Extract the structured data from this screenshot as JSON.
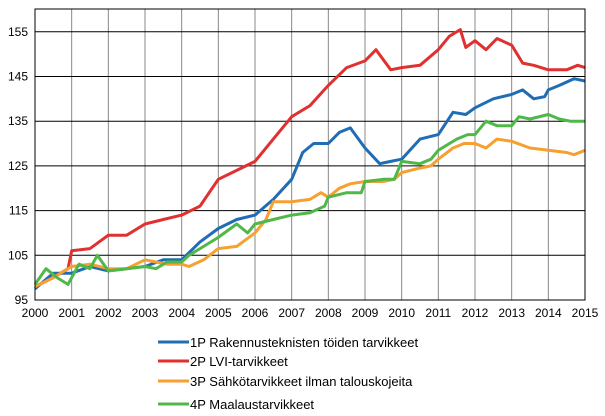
{
  "chart_data": {
    "type": "line",
    "title": "",
    "xlabel": "",
    "ylabel": "",
    "xlim": [
      2000,
      2015
    ],
    "ylim": [
      95,
      160
    ],
    "x_ticks": [
      "2000",
      "2001",
      "2002",
      "2003",
      "2004",
      "2005",
      "2006",
      "2007",
      "2008",
      "2009",
      "2010",
      "2011",
      "2012",
      "2013",
      "2014",
      "2015"
    ],
    "y_ticks": [
      "95",
      "105",
      "115",
      "125",
      "135",
      "145",
      "155"
    ],
    "grid": "both",
    "legend_placement": "bottom",
    "series": [
      {
        "name": "1P Rakennusteknisten töiden tarvikkeet",
        "color": "#1f6db5",
        "points": [
          [
            2000,
            97.5
          ],
          [
            2000.5,
            101
          ],
          [
            2001,
            101
          ],
          [
            2001.5,
            102.5
          ],
          [
            2002,
            101.5
          ],
          [
            2002.5,
            102
          ],
          [
            2003,
            102.5
          ],
          [
            2003.5,
            104
          ],
          [
            2004,
            104
          ],
          [
            2004.5,
            108
          ],
          [
            2005,
            111
          ],
          [
            2005.5,
            113
          ],
          [
            2006,
            114
          ],
          [
            2006.5,
            117.5
          ],
          [
            2007,
            122
          ],
          [
            2007.3,
            128
          ],
          [
            2007.6,
            130
          ],
          [
            2008,
            130
          ],
          [
            2008.3,
            132.5
          ],
          [
            2008.6,
            133.5
          ],
          [
            2009,
            129
          ],
          [
            2009.4,
            125.5
          ],
          [
            2009.7,
            126
          ],
          [
            2010,
            126.5
          ],
          [
            2010.5,
            131
          ],
          [
            2011,
            132
          ],
          [
            2011.4,
            137
          ],
          [
            2011.75,
            136.5
          ],
          [
            2012,
            138
          ],
          [
            2012.5,
            140
          ],
          [
            2013,
            141
          ],
          [
            2013.3,
            142
          ],
          [
            2013.6,
            140
          ],
          [
            2013.9,
            140.5
          ],
          [
            2014,
            142
          ],
          [
            2014.3,
            143
          ],
          [
            2014.7,
            144.5
          ],
          [
            2015,
            144
          ]
        ]
      },
      {
        "name": "2P LVI-tarvikkeet",
        "color": "#e03030",
        "points": [
          [
            2000,
            98
          ],
          [
            2000.5,
            100
          ],
          [
            2000.9,
            102
          ],
          [
            2001,
            106
          ],
          [
            2001.5,
            106.5
          ],
          [
            2002,
            109.5
          ],
          [
            2002.5,
            109.5
          ],
          [
            2003,
            112
          ],
          [
            2003.5,
            113
          ],
          [
            2004,
            114
          ],
          [
            2004.5,
            116
          ],
          [
            2005,
            122
          ],
          [
            2005.5,
            124
          ],
          [
            2006,
            126
          ],
          [
            2006.5,
            131
          ],
          [
            2007,
            136
          ],
          [
            2007.5,
            138.5
          ],
          [
            2008,
            143
          ],
          [
            2008.5,
            147
          ],
          [
            2009,
            148.5
          ],
          [
            2009.3,
            151
          ],
          [
            2009.7,
            146.5
          ],
          [
            2010,
            147
          ],
          [
            2010.5,
            147.5
          ],
          [
            2011,
            151
          ],
          [
            2011.3,
            154
          ],
          [
            2011.6,
            155.5
          ],
          [
            2011.75,
            151.5
          ],
          [
            2012,
            153
          ],
          [
            2012.3,
            151
          ],
          [
            2012.6,
            153.5
          ],
          [
            2013,
            152
          ],
          [
            2013.3,
            148
          ],
          [
            2013.6,
            147.5
          ],
          [
            2014,
            146.5
          ],
          [
            2014.5,
            146.5
          ],
          [
            2014.8,
            147.5
          ],
          [
            2015,
            147
          ]
        ]
      },
      {
        "name": "3P Sähkötarvikkeet ilman talouskojeita",
        "color": "#f5a030",
        "points": [
          [
            2000,
            98
          ],
          [
            2000.5,
            100
          ],
          [
            2001,
            102.5
          ],
          [
            2001.5,
            103
          ],
          [
            2002,
            102
          ],
          [
            2002.5,
            102
          ],
          [
            2003,
            104
          ],
          [
            2003.3,
            103.5
          ],
          [
            2003.6,
            103
          ],
          [
            2004,
            103
          ],
          [
            2004.2,
            102.5
          ],
          [
            2004.6,
            104
          ],
          [
            2005,
            106.5
          ],
          [
            2005.5,
            107
          ],
          [
            2006,
            110
          ],
          [
            2006.3,
            113
          ],
          [
            2006.5,
            117
          ],
          [
            2007,
            117
          ],
          [
            2007.5,
            117.5
          ],
          [
            2007.8,
            119
          ],
          [
            2008,
            118
          ],
          [
            2008.3,
            120
          ],
          [
            2008.6,
            121
          ],
          [
            2009,
            121.5
          ],
          [
            2009.5,
            121.5
          ],
          [
            2009.8,
            122
          ],
          [
            2010,
            123.5
          ],
          [
            2010.5,
            124.5
          ],
          [
            2010.8,
            125
          ],
          [
            2011,
            126.5
          ],
          [
            2011.4,
            129
          ],
          [
            2011.7,
            130
          ],
          [
            2012,
            130
          ],
          [
            2012.3,
            129
          ],
          [
            2012.6,
            131
          ],
          [
            2013,
            130.5
          ],
          [
            2013.5,
            129
          ],
          [
            2014,
            128.5
          ],
          [
            2014.5,
            128
          ],
          [
            2014.7,
            127.5
          ],
          [
            2015,
            128.5
          ]
        ]
      },
      {
        "name": "4P Maalaustarvikkeet",
        "color": "#50b848",
        "points": [
          [
            2000,
            98.5
          ],
          [
            2000.3,
            102
          ],
          [
            2000.6,
            100
          ],
          [
            2000.9,
            98.5
          ],
          [
            2001.2,
            103
          ],
          [
            2001.5,
            102
          ],
          [
            2001.7,
            105
          ],
          [
            2002,
            101.5
          ],
          [
            2002.5,
            102
          ],
          [
            2003,
            102.5
          ],
          [
            2003.3,
            102
          ],
          [
            2003.6,
            103.5
          ],
          [
            2004,
            103.5
          ],
          [
            2004.2,
            105
          ],
          [
            2004.5,
            106.5
          ],
          [
            2005,
            109
          ],
          [
            2005.5,
            112
          ],
          [
            2005.8,
            110
          ],
          [
            2006,
            112
          ],
          [
            2006.5,
            113
          ],
          [
            2007,
            114
          ],
          [
            2007.5,
            114.5
          ],
          [
            2007.9,
            116
          ],
          [
            2008,
            118
          ],
          [
            2008.5,
            119
          ],
          [
            2008.9,
            119
          ],
          [
            2009,
            121.5
          ],
          [
            2009.5,
            122
          ],
          [
            2009.8,
            122
          ],
          [
            2010,
            126
          ],
          [
            2010.5,
            125.5
          ],
          [
            2010.8,
            126.5
          ],
          [
            2011,
            128.5
          ],
          [
            2011.5,
            131
          ],
          [
            2011.8,
            132
          ],
          [
            2012,
            132
          ],
          [
            2012.3,
            135
          ],
          [
            2012.6,
            134
          ],
          [
            2013,
            134
          ],
          [
            2013.2,
            136
          ],
          [
            2013.5,
            135.5
          ],
          [
            2014,
            136.5
          ],
          [
            2014.3,
            135.5
          ],
          [
            2014.6,
            135
          ],
          [
            2015,
            135
          ]
        ]
      }
    ]
  }
}
